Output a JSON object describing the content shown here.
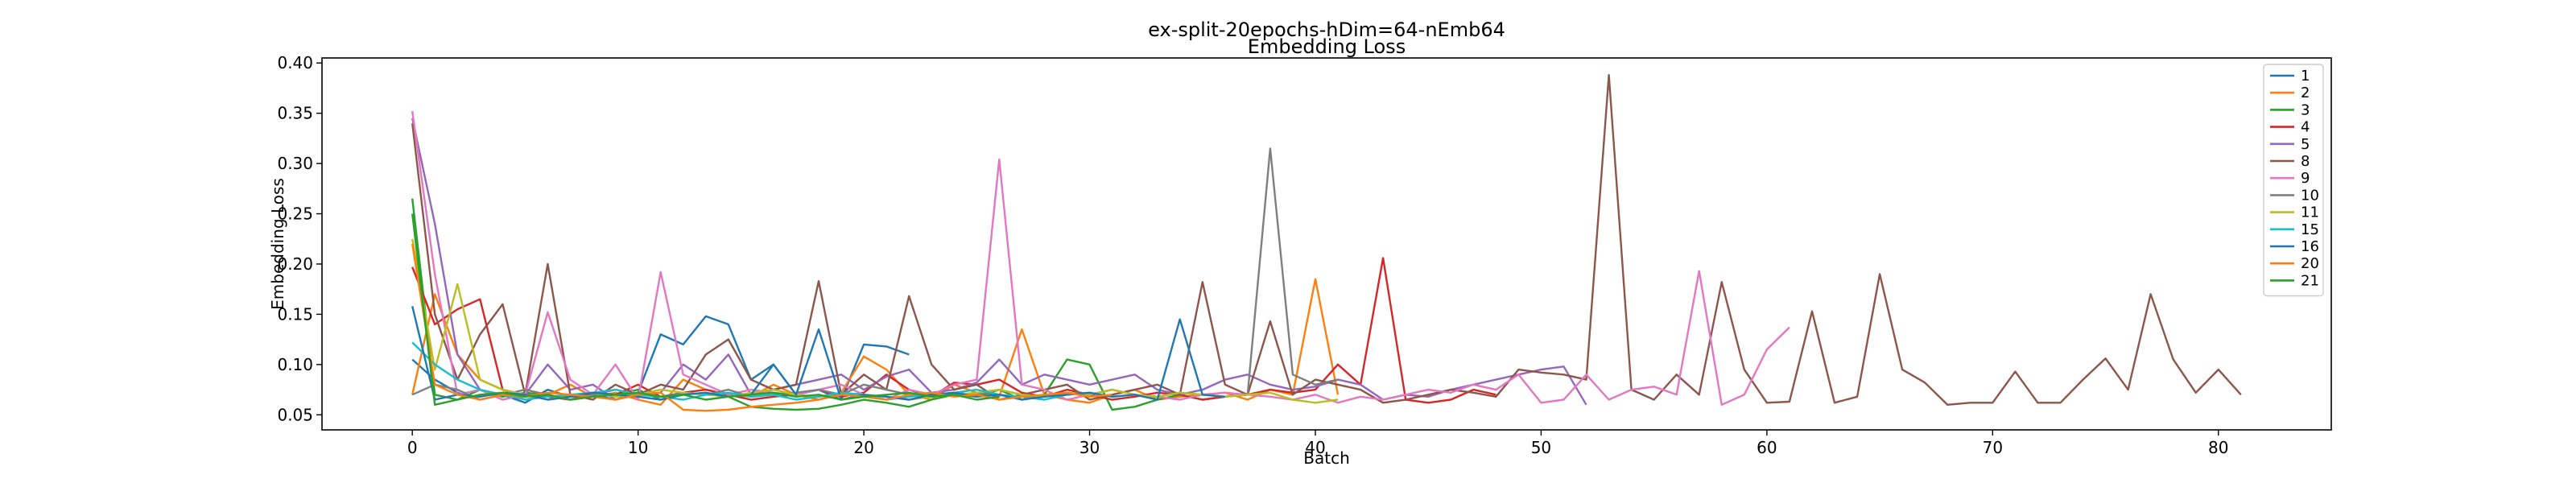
{
  "chart_data": {
    "type": "line",
    "title": "ex-split-20epochs-hDim=64-nEmb64",
    "subtitle": "Embedding Loss",
    "xlabel": "Batch",
    "ylabel": "Embedding Loss",
    "xlim": [
      -4,
      85
    ],
    "ylim": [
      0.035,
      0.405
    ],
    "xticks": [
      0,
      10,
      20,
      30,
      40,
      50,
      60,
      70,
      80
    ],
    "yticks": [
      0.05,
      0.1,
      0.15,
      0.2,
      0.25,
      0.3,
      0.35,
      0.4
    ],
    "xtick_labels": [
      "0",
      "10",
      "20",
      "30",
      "40",
      "50",
      "60",
      "70",
      "80"
    ],
    "ytick_labels": [
      "0.05",
      "0.10",
      "0.15",
      "0.20",
      "0.25",
      "0.30",
      "0.35",
      "0.40"
    ],
    "grid": false,
    "legend_position": "top-right",
    "series": [
      {
        "name": "1",
        "color": "#1f77b4",
        "values": [
          0.105,
          0.085,
          0.072,
          0.065,
          0.07,
          0.062,
          0.075,
          0.068,
          0.07,
          0.065,
          0.072,
          0.13,
          0.12,
          0.148,
          0.14,
          0.085,
          0.1,
          0.07,
          0.075,
          0.065,
          0.12,
          0.118,
          0.11
        ]
      },
      {
        "name": "2",
        "color": "#ff7f0e",
        "values": [
          0.07,
          0.17,
          0.11,
          0.085,
          0.075,
          0.065,
          0.07,
          0.08,
          0.068,
          0.072,
          0.065,
          0.06,
          0.085,
          0.075,
          0.07,
          0.068,
          0.08,
          0.07,
          0.065,
          0.072,
          0.108,
          0.095,
          0.07,
          0.065,
          0.08,
          0.072,
          0.068,
          0.135,
          0.07,
          0.065,
          0.062,
          0.07,
          0.075,
          0.065,
          0.068,
          0.07,
          0.072,
          0.065,
          0.075,
          0.07,
          0.185,
          0.07
        ]
      },
      {
        "name": "3",
        "color": "#2ca02c",
        "values": [
          0.265,
          0.07,
          0.065,
          0.075,
          0.068,
          0.072,
          0.07,
          0.065,
          0.068,
          0.07,
          0.075,
          0.065,
          0.07,
          0.072,
          0.068,
          0.058,
          0.056,
          0.055,
          0.056,
          0.06,
          0.065,
          0.062,
          0.058,
          0.065,
          0.07,
          0.068,
          0.075,
          0.065,
          0.07,
          0.105,
          0.1,
          0.055,
          0.058,
          0.065,
          0.07,
          0.065,
          0.068,
          0.07
        ]
      },
      {
        "name": "4",
        "color": "#d62728",
        "values": [
          0.197,
          0.14,
          0.155,
          0.165,
          0.075,
          0.07,
          0.068,
          0.065,
          0.072,
          0.07,
          0.08,
          0.068,
          0.072,
          0.075,
          0.07,
          0.065,
          0.068,
          0.07,
          0.075,
          0.068,
          0.072,
          0.09,
          0.075,
          0.068,
          0.082,
          0.08,
          0.085,
          0.072,
          0.068,
          0.075,
          0.07,
          0.065,
          0.068,
          0.072,
          0.07,
          0.065,
          0.068,
          0.07,
          0.075,
          0.072,
          0.075,
          0.1,
          0.08,
          0.206,
          0.065,
          0.062,
          0.065,
          0.075,
          0.07
        ]
      },
      {
        "name": "5",
        "color": "#9467bd",
        "values": [
          0.345,
          0.24,
          0.11,
          0.075,
          0.065,
          0.07,
          0.1,
          0.075,
          0.08,
          0.065,
          0.07,
          0.072,
          0.1,
          0.085,
          0.11,
          0.07,
          0.075,
          0.08,
          0.085,
          0.09,
          0.075,
          0.088,
          0.095,
          0.072,
          0.075,
          0.082,
          0.105,
          0.08,
          0.09,
          0.085,
          0.08,
          0.085,
          0.09,
          0.075,
          0.07,
          0.075,
          0.085,
          0.09,
          0.08,
          0.075,
          0.078,
          0.085,
          0.08,
          0.065,
          0.07,
          0.068,
          0.075,
          0.08,
          0.085,
          0.09,
          0.095,
          0.098,
          0.06
        ]
      },
      {
        "name": "8",
        "color": "#8c564b",
        "values": [
          0.34,
          0.15,
          0.085,
          0.13,
          0.16,
          0.07,
          0.2,
          0.07,
          0.065,
          0.08,
          0.07,
          0.08,
          0.075,
          0.11,
          0.125,
          0.085,
          0.075,
          0.08,
          0.183,
          0.07,
          0.09,
          0.075,
          0.168,
          0.1,
          0.075,
          0.08,
          0.065,
          0.07,
          0.075,
          0.08,
          0.065,
          0.07,
          0.075,
          0.08,
          0.07,
          0.182,
          0.08,
          0.07,
          0.143,
          0.07,
          0.085,
          0.08,
          0.075,
          0.062,
          0.065,
          0.07,
          0.075,
          0.072,
          0.068,
          0.095,
          0.092,
          0.09,
          0.085,
          0.388,
          0.075,
          0.065,
          0.09,
          0.07,
          0.182,
          0.095,
          0.062,
          0.063,
          0.153,
          0.062,
          0.068,
          0.19,
          0.095,
          0.082,
          0.06,
          0.062,
          0.062,
          0.093,
          0.062,
          0.062,
          0.085,
          0.106,
          0.075,
          0.17,
          0.105,
          0.072,
          0.095,
          0.07
        ]
      },
      {
        "name": "9",
        "color": "#e377c2",
        "values": [
          0.352,
          0.19,
          0.07,
          0.075,
          0.065,
          0.07,
          0.152,
          0.085,
          0.07,
          0.1,
          0.065,
          0.192,
          0.09,
          0.08,
          0.07,
          0.075,
          0.072,
          0.07,
          0.075,
          0.08,
          0.07,
          0.065,
          0.075,
          0.07,
          0.08,
          0.085,
          0.304,
          0.08,
          0.075,
          0.065,
          0.07,
          0.075,
          0.07,
          0.068,
          0.065,
          0.07,
          0.072,
          0.07,
          0.068,
          0.065,
          0.07,
          0.062,
          0.068,
          0.065,
          0.07,
          0.075,
          0.072,
          0.08,
          0.075,
          0.09,
          0.062,
          0.065,
          0.09,
          0.065,
          0.075,
          0.078,
          0.07,
          0.193,
          0.06,
          0.07,
          0.115,
          0.137
        ]
      },
      {
        "name": "10",
        "color": "#7f7f7f",
        "values": [
          0.07,
          0.08,
          0.075,
          0.065,
          0.07,
          0.075,
          0.07,
          0.065,
          0.07,
          0.075,
          0.07,
          0.068,
          0.072,
          0.07,
          0.075,
          0.068,
          0.07,
          0.072,
          0.075,
          0.07,
          0.08,
          0.075,
          0.07,
          0.068,
          0.072,
          0.07,
          0.075,
          0.07,
          0.068,
          0.072,
          0.07,
          0.075,
          0.07,
          0.068,
          0.072,
          0.07,
          0.068,
          0.07,
          0.315,
          0.09,
          0.08,
          0.085
        ]
      },
      {
        "name": "11",
        "color": "#bcbd22",
        "values": [
          0.225,
          0.095,
          0.18,
          0.085,
          0.075,
          0.07,
          0.065,
          0.07,
          0.072,
          0.068,
          0.07,
          0.075,
          0.072,
          0.07,
          0.068,
          0.072,
          0.075,
          0.07,
          0.068,
          0.072,
          0.07,
          0.068,
          0.065,
          0.068,
          0.07,
          0.072,
          0.075,
          0.07,
          0.068,
          0.072,
          0.07,
          0.075,
          0.07,
          0.068,
          0.072,
          0.07,
          0.068,
          0.07,
          0.072,
          0.065,
          0.062,
          0.065
        ]
      },
      {
        "name": "15",
        "color": "#17becf",
        "values": [
          0.122,
          0.1,
          0.085,
          0.075,
          0.07,
          0.065,
          0.068,
          0.07,
          0.072,
          0.075,
          0.07,
          0.068,
          0.065,
          0.07,
          0.072,
          0.068,
          0.07,
          0.065,
          0.068,
          0.072,
          0.07,
          0.065,
          0.068,
          0.07,
          0.072,
          0.075,
          0.07,
          0.068,
          0.065,
          0.07,
          0.072,
          0.068,
          0.07
        ]
      },
      {
        "name": "16",
        "color": "#1f77b4",
        "values": [
          0.158,
          0.065,
          0.07,
          0.068,
          0.072,
          0.07,
          0.065,
          0.068,
          0.072,
          0.07,
          0.068,
          0.065,
          0.07,
          0.072,
          0.068,
          0.07,
          0.1,
          0.07,
          0.135,
          0.065,
          0.07,
          0.068,
          0.065,
          0.07,
          0.072,
          0.068,
          0.07,
          0.065,
          0.068,
          0.07,
          0.072,
          0.068,
          0.07,
          0.065,
          0.145,
          0.07,
          0.068
        ]
      },
      {
        "name": "20",
        "color": "#ff7f0e",
        "values": [
          0.22,
          0.08,
          0.07,
          0.065,
          0.07,
          0.068,
          0.072,
          0.07,
          0.068,
          0.065,
          0.07,
          0.072,
          0.055,
          0.054,
          0.055,
          0.058,
          0.06,
          0.062,
          0.065,
          0.07,
          0.068,
          0.065,
          0.07,
          0.072,
          0.068,
          0.07,
          0.065,
          0.068,
          0.07,
          0.072,
          0.068,
          0.07
        ]
      },
      {
        "name": "21",
        "color": "#2ca02c",
        "values": [
          0.25,
          0.06,
          0.065,
          0.07,
          0.072,
          0.068,
          0.07,
          0.065,
          0.068,
          0.07,
          0.072,
          0.068,
          0.07,
          0.065,
          0.068,
          0.07,
          0.072,
          0.068,
          0.07,
          0.065,
          0.068,
          0.07,
          0.072,
          0.068,
          0.07,
          0.065,
          0.068
        ]
      }
    ]
  }
}
